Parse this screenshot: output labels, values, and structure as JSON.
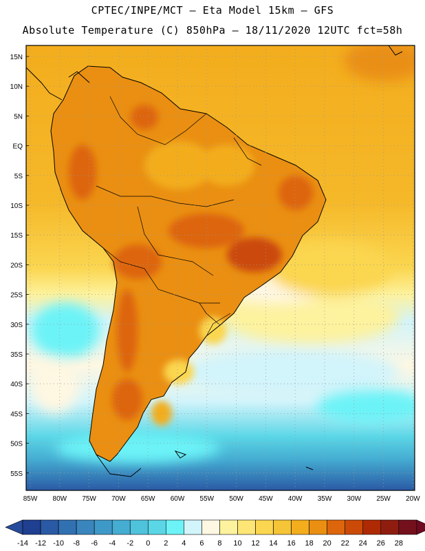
{
  "header": {
    "line1": "CPTEC/INPE/MCT –  Eta Model 15km – GFS",
    "line2": "Absolute Temperature (C) 850hPa – 18/11/2020 12UTC fct=58h"
  },
  "map": {
    "lat_labels": [
      "15N",
      "10N",
      "5N",
      "EQ",
      "5S",
      "10S",
      "15S",
      "20S",
      "25S",
      "30S",
      "35S",
      "40S",
      "45S",
      "50S",
      "55S"
    ],
    "lon_labels": [
      "85W",
      "80W",
      "75W",
      "70W",
      "65W",
      "60W",
      "55W",
      "50W",
      "45W",
      "40W",
      "35W",
      "30W",
      "25W",
      "20W"
    ]
  },
  "legend": {
    "labels": [
      "-14",
      "-12",
      "-10",
      "-8",
      "-6",
      "-4",
      "-2",
      "0",
      "2",
      "4",
      "6",
      "8",
      "10",
      "12",
      "14",
      "16",
      "18",
      "20",
      "22",
      "24",
      "26",
      "28"
    ],
    "colors": [
      "#1f3f91",
      "#2a5aa5",
      "#3171b2",
      "#3a85bd",
      "#3f99c8",
      "#45acd2",
      "#4fc2dc",
      "#5ad6e6",
      "#6cf3f7",
      "#d2f4fb",
      "#fef7e2",
      "#fdf29e",
      "#fde676",
      "#fbd650",
      "#f5c437",
      "#f3ad1d",
      "#ea8f12",
      "#dd650c",
      "#cb4a08",
      "#ae2a05",
      "#8e1d10",
      "#74101c"
    ],
    "under_color": "#264b9b",
    "over_color": "#6e0a22"
  }
}
